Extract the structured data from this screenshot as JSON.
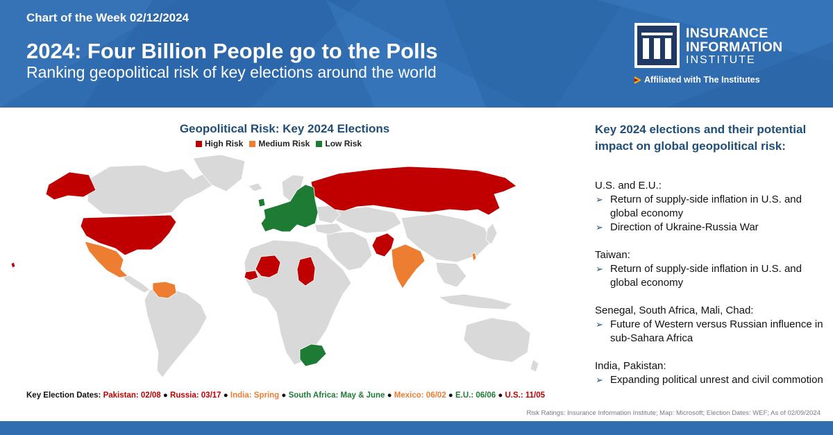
{
  "header": {
    "chart_of_week": "Chart of the Week 02/12/2024",
    "title": "2024: Four Billion People go to the Polls",
    "subtitle": "Ranking geopolitical risk of key elections around the world",
    "logo_line1": "INSURANCE",
    "logo_line2": "INFORMATION",
    "logo_line3": "INSTITUTE",
    "affiliation": "Affiliated with The Institutes",
    "banner_color": "#2f6db0"
  },
  "chart_data": {
    "type": "choropleth",
    "title": "Geopolitical Risk: Key 2024 Elections",
    "legend": [
      {
        "label": "High Risk",
        "color": "#c00000"
      },
      {
        "label": "Medium Risk",
        "color": "#ed7d31"
      },
      {
        "label": "Low Risk",
        "color": "#1e7b34"
      }
    ],
    "countries": [
      {
        "name": "U.S.",
        "risk": "High Risk"
      },
      {
        "name": "Russia",
        "risk": "High Risk"
      },
      {
        "name": "Pakistan",
        "risk": "High Risk"
      },
      {
        "name": "Mali",
        "risk": "High Risk"
      },
      {
        "name": "Chad",
        "risk": "High Risk"
      },
      {
        "name": "Senegal",
        "risk": "High Risk"
      },
      {
        "name": "Taiwan",
        "risk": "Medium Risk"
      },
      {
        "name": "Mexico",
        "risk": "Medium Risk"
      },
      {
        "name": "India",
        "risk": "Medium Risk"
      },
      {
        "name": "Venezuela",
        "risk": "Medium Risk"
      },
      {
        "name": "E.U.",
        "risk": "Low Risk"
      },
      {
        "name": "South Africa",
        "risk": "Low Risk"
      }
    ],
    "base_color": "#d9d9d9",
    "election_dates_label": "Key Election Dates:",
    "election_dates": [
      {
        "text": "Pakistan: 02/08",
        "color": "#c00000"
      },
      {
        "text": "Russia: 03/17",
        "color": "#c00000"
      },
      {
        "text": "India: Spring",
        "color": "#ed7d31"
      },
      {
        "text": "South Africa: May & June",
        "color": "#1e7b34"
      },
      {
        "text": "Mexico: 06/02",
        "color": "#ed7d31"
      },
      {
        "text": "E.U.: 06/06",
        "color": "#1e7b34"
      },
      {
        "text": "U.S.: 11/05",
        "color": "#c00000"
      }
    ]
  },
  "panel": {
    "title": "Key 2024 elections and their potential impact on global geopolitical risk:",
    "groups": [
      {
        "label": "U.S. and E.U.:",
        "bullets": [
          "Return of supply-side inflation in U.S. and global economy",
          "Direction of Ukraine-Russia War"
        ]
      },
      {
        "label": "Taiwan:",
        "bullets": [
          "Return of supply-side inflation in U.S. and global economy"
        ]
      },
      {
        "label": "Senegal, South Africa, Mali, Chad:",
        "bullets": [
          "Future of Western versus Russian influence in sub-Sahara Africa"
        ]
      },
      {
        "label": "India, Pakistan:",
        "bullets": [
          "Expanding political unrest and civil commotion"
        ]
      }
    ]
  },
  "source": "Risk Ratings: Insurance Information Institute; Map: Microsoft; Election Dates: WEF; As of 02/09/2024"
}
